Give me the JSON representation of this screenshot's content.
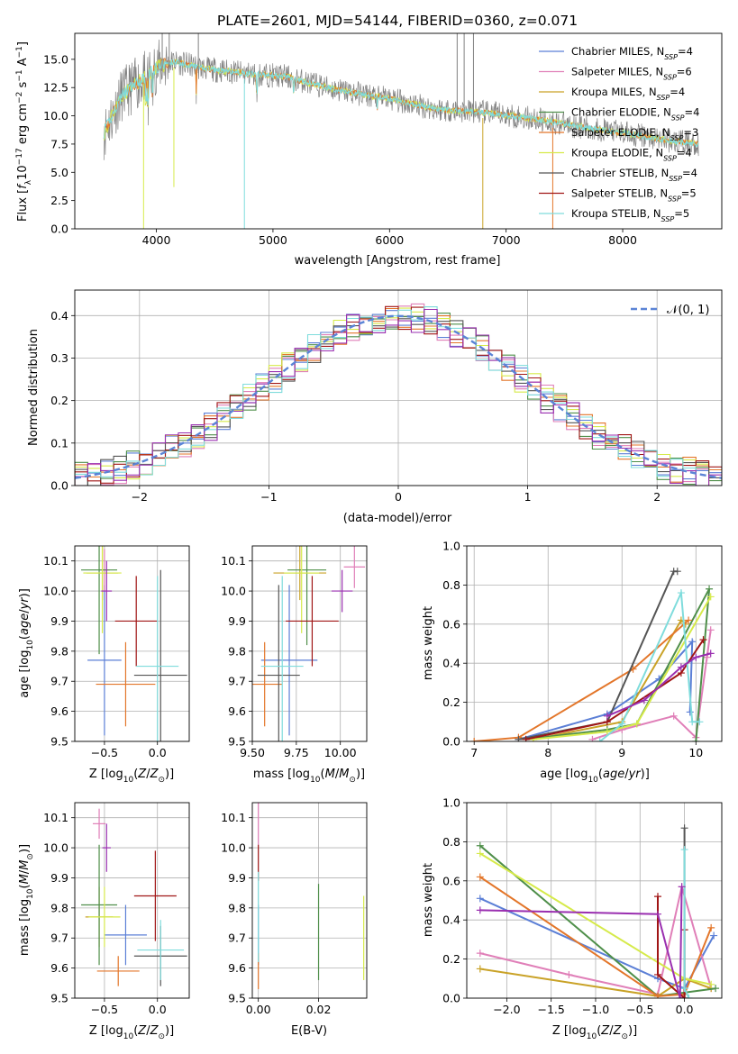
{
  "page_title": "PLATE=2601, MJD=54144, FIBERID=0360, z=0.071",
  "colors": {
    "Chabrier MILES": "#5b7fd6",
    "Salpeter MILES": "#e07fb8",
    "Kroupa MILES": "#c9a227",
    "Chabrier ELODIE": "#4f8f4a",
    "Salpeter ELODIE": "#e3762a",
    "Kroupa ELODIE": "#d6ea4a",
    "Chabrier STELIB": "#555555",
    "Salpeter STELIB": "#a01515",
    "Kroupa STELIB": "#7fdcdc",
    "purple": "#9a2fb0",
    "grey_data": "#808080",
    "gauss": "#5b84d6"
  },
  "chart_data": [
    {
      "id": "spectrum",
      "type": "line",
      "title": "PLATE=2601, MJD=54144, FIBERID=0360, z=0.071",
      "xlabel": "wavelength [Angstrom, rest frame]",
      "ylabel": "Flux [f_λ 10^{-17} erg cm^{-2} s^{-1} A^{-1}]",
      "xlim": [
        3300,
        8850
      ],
      "ylim": [
        0,
        17.3
      ],
      "xticks": [
        "4000",
        "5000",
        "6000",
        "7000",
        "8000"
      ],
      "yticks": [
        "0.0",
        "2.5",
        "5.0",
        "7.5",
        "10.0",
        "12.5",
        "15.0"
      ],
      "legend_position": "top-right",
      "legend": [
        {
          "name": "Chabrier MILES",
          "nssp": "4"
        },
        {
          "name": "Salpeter MILES",
          "nssp": "6"
        },
        {
          "name": "Kroupa MILES",
          "nssp": "4"
        },
        {
          "name": "Chabrier ELODIE",
          "nssp": "4"
        },
        {
          "name": "Salpeter ELODIE",
          "nssp": "3"
        },
        {
          "name": "Kroupa ELODIE",
          "nssp": "4"
        },
        {
          "name": "Chabrier STELIB",
          "nssp": "4"
        },
        {
          "name": "Salpeter STELIB",
          "nssp": "5"
        },
        {
          "name": "Kroupa STELIB",
          "nssp": "5"
        }
      ],
      "continuum": {
        "x": [
          3550,
          3700,
          3850,
          4000,
          4150,
          4400,
          4800,
          5100,
          5500,
          6000,
          6400,
          6800,
          7200,
          7600,
          8000,
          8400,
          8650
        ],
        "y": [
          8.5,
          11.8,
          13.0,
          14.3,
          14.8,
          14.2,
          13.7,
          13.5,
          12.4,
          11.5,
          10.6,
          10.3,
          9.8,
          9.1,
          8.5,
          7.8,
          7.5
        ]
      }
    },
    {
      "id": "residuals",
      "type": "histogram",
      "xlabel": "(data-model)/error",
      "ylabel": "Normed distribution",
      "xlim": [
        -2.5,
        2.5
      ],
      "ylim": [
        0,
        0.46
      ],
      "xticks": [
        "−2",
        "−1",
        "0",
        "1",
        "2"
      ],
      "yticks": [
        "0.0",
        "0.1",
        "0.2",
        "0.3",
        "0.4"
      ],
      "legend": "𝒩(0, 1)",
      "legend_position": "top-right",
      "gaussian": {
        "mu": 0,
        "sigma": 1
      }
    },
    {
      "id": "age-vs-Z",
      "type": "scatter",
      "xlabel": "Z [log10(Z/Z☉)]",
      "ylabel": "age [log10(age/yr)]",
      "xlim": [
        -0.78,
        0.3
      ],
      "ylim": [
        9.5,
        10.15
      ],
      "xticks": [
        "−0.5",
        "0.0"
      ],
      "yticks": [
        "9.5",
        "9.6",
        "9.7",
        "9.8",
        "9.9",
        "10.0",
        "10.1"
      ],
      "points": [
        {
          "series": "Chabrier MILES",
          "x": -0.5,
          "y": 9.77,
          "xerr": 0.16,
          "yerr": 0.25
        },
        {
          "series": "Salpeter MILES",
          "x": -0.5,
          "y": 10.07,
          "xerr": 0.05,
          "yerr": 0.07
        },
        {
          "series": "Kroupa MILES",
          "x": -0.52,
          "y": 10.06,
          "xerr": 0.15,
          "yerr": 0.09
        },
        {
          "series": "Chabrier ELODIE",
          "x": -0.55,
          "y": 10.07,
          "xerr": 0.17,
          "yerr": 0.28
        },
        {
          "series": "Salpeter ELODIE",
          "x": -0.3,
          "y": 9.69,
          "xerr": 0.28,
          "yerr": 0.14
        },
        {
          "series": "Kroupa ELODIE",
          "x": -0.52,
          "y": 10.06,
          "xerr": 0.18,
          "yerr": 0.2
        },
        {
          "series": "Chabrier STELIB",
          "x": 0.03,
          "y": 9.72,
          "xerr": 0.25,
          "yerr": 0.35
        },
        {
          "series": "Salpeter STELIB",
          "x": -0.2,
          "y": 9.9,
          "xerr": 0.2,
          "yerr": 0.15
        },
        {
          "series": "Kroupa STELIB",
          "x": 0.0,
          "y": 9.75,
          "xerr": 0.2,
          "yerr": 0.3
        },
        {
          "series": "purple",
          "x": -0.48,
          "y": 10.0,
          "xerr": 0.05,
          "yerr": 0.1
        }
      ]
    },
    {
      "id": "age-vs-mass",
      "type": "scatter",
      "xlabel": "mass [log10(M/M☉)]",
      "ylabel": "",
      "xlim": [
        9.5,
        10.15
      ],
      "ylim": [
        9.5,
        10.15
      ],
      "xticks": [
        "9.50",
        "9.75",
        "10.00"
      ],
      "yticks": [
        "9.5",
        "9.6",
        "9.7",
        "9.8",
        "9.9",
        "10.0",
        "10.1"
      ],
      "points": [
        {
          "series": "Chabrier MILES",
          "x": 9.71,
          "y": 9.77,
          "xerr": 0.16,
          "yerr": 0.25
        },
        {
          "series": "Salpeter MILES",
          "x": 10.08,
          "y": 10.08,
          "xerr": 0.06,
          "yerr": 0.07
        },
        {
          "series": "Kroupa MILES",
          "x": 9.77,
          "y": 10.06,
          "xerr": 0.15,
          "yerr": 0.09
        },
        {
          "series": "Chabrier ELODIE",
          "x": 9.81,
          "y": 10.07,
          "xerr": 0.11,
          "yerr": 0.25
        },
        {
          "series": "Salpeter ELODIE",
          "x": 9.57,
          "y": 9.69,
          "xerr": 0.1,
          "yerr": 0.14
        },
        {
          "series": "Kroupa ELODIE",
          "x": 9.78,
          "y": 10.06,
          "xerr": 0.1,
          "yerr": 0.2
        },
        {
          "series": "Chabrier STELIB",
          "x": 9.65,
          "y": 9.72,
          "xerr": 0.12,
          "yerr": 0.3
        },
        {
          "series": "Salpeter STELIB",
          "x": 9.84,
          "y": 9.9,
          "xerr": 0.15,
          "yerr": 0.15
        },
        {
          "series": "Kroupa STELIB",
          "x": 9.67,
          "y": 9.75,
          "xerr": 0.12,
          "yerr": 0.3
        },
        {
          "series": "purple",
          "x": 10.01,
          "y": 10.0,
          "xerr": 0.06,
          "yerr": 0.07
        }
      ]
    },
    {
      "id": "massweight-vs-age",
      "type": "line",
      "xlabel": "age [log10(age/yr)]",
      "ylabel": "mass weight",
      "xlim": [
        6.9,
        10.35
      ],
      "ylim": [
        0,
        1
      ],
      "xticks": [
        "7",
        "8",
        "9",
        "10"
      ],
      "yticks": [
        "0.0",
        "0.2",
        "0.4",
        "0.6",
        "0.8",
        "1.0"
      ],
      "series": [
        {
          "name": "Chabrier MILES",
          "x": [
            7.6,
            8.8,
            9.5,
            9.95,
            9.92
          ],
          "y": [
            0.01,
            0.14,
            0.32,
            0.51,
            0.15
          ]
        },
        {
          "name": "Salpeter MILES",
          "x": [
            8.6,
            9.0,
            9.7,
            10.0,
            10.2,
            10.15
          ],
          "y": [
            0.01,
            0.06,
            0.13,
            0.02,
            0.57,
            0.43
          ]
        },
        {
          "name": "Kroupa MILES",
          "x": [
            7.8,
            9.0,
            9.8,
            9.86
          ],
          "y": [
            0.01,
            0.1,
            0.62,
            0.6
          ]
        },
        {
          "name": "Chabrier ELODIE",
          "x": [
            7.7,
            8.8,
            9.2,
            10.18,
            10.0
          ],
          "y": [
            0.01,
            0.06,
            0.09,
            0.78,
            0.0
          ]
        },
        {
          "name": "Salpeter ELODIE",
          "x": [
            7.0,
            7.6,
            9.15,
            9.9
          ],
          "y": [
            0.0,
            0.02,
            0.37,
            0.62
          ]
        },
        {
          "name": "Kroupa ELODIE",
          "x": [
            7.8,
            8.8,
            9.2,
            10.2
          ],
          "y": [
            0.01,
            0.05,
            0.09,
            0.74
          ]
        },
        {
          "name": "Chabrier STELIB",
          "x": [
            7.6,
            8.8,
            9.7,
            9.75
          ],
          "y": [
            0.01,
            0.1,
            0.87,
            0.87
          ]
        },
        {
          "name": "Salpeter STELIB",
          "x": [
            7.7,
            8.8,
            9.8,
            10.1
          ],
          "y": [
            0.01,
            0.1,
            0.35,
            0.52
          ]
        },
        {
          "name": "Kroupa STELIB",
          "x": [
            8.7,
            9.0,
            9.8,
            9.95,
            10.05
          ],
          "y": [
            0.0,
            0.09,
            0.76,
            0.1,
            0.1
          ]
        },
        {
          "name": "purple",
          "x": [
            8.8,
            9.3,
            9.8,
            10.0,
            10.2
          ],
          "y": [
            0.13,
            0.21,
            0.38,
            0.43,
            0.45
          ]
        }
      ]
    },
    {
      "id": "mass-vs-Z",
      "type": "scatter",
      "xlabel": "Z [log10(Z/Z☉)]",
      "ylabel": "mass [log10(M/M☉)]",
      "xlim": [
        -0.78,
        0.3
      ],
      "ylim": [
        9.5,
        10.15
      ],
      "xticks": [
        "−0.5",
        "0.0"
      ],
      "yticks": [
        "9.5",
        "9.6",
        "9.7",
        "9.8",
        "9.9",
        "10.0",
        "10.1"
      ],
      "points": [
        {
          "series": "Chabrier MILES",
          "x": -0.3,
          "y": 9.71,
          "xerr": 0.2,
          "yerr": 0.1
        },
        {
          "series": "Salpeter MILES",
          "x": -0.55,
          "y": 10.08,
          "xerr": 0.06,
          "yerr": 0.05
        },
        {
          "series": "Kroupa MILES",
          "x": -0.55,
          "y": 9.77,
          "xerr": 0.13,
          "yerr": 0.1
        },
        {
          "series": "Chabrier ELODIE",
          "x": -0.55,
          "y": 9.81,
          "xerr": 0.17,
          "yerr": 0.2
        },
        {
          "series": "Salpeter ELODIE",
          "x": -0.37,
          "y": 9.59,
          "xerr": 0.2,
          "yerr": 0.05
        },
        {
          "series": "Kroupa ELODIE",
          "x": -0.5,
          "y": 9.77,
          "xerr": 0.15,
          "yerr": 0.1
        },
        {
          "series": "Chabrier STELIB",
          "x": 0.03,
          "y": 9.64,
          "xerr": 0.25,
          "yerr": 0.1
        },
        {
          "series": "Salpeter STELIB",
          "x": -0.02,
          "y": 9.84,
          "xerr": 0.2,
          "yerr": 0.15
        },
        {
          "series": "Kroupa STELIB",
          "x": 0.03,
          "y": 9.66,
          "xerr": 0.22,
          "yerr": 0.1
        },
        {
          "series": "purple",
          "x": -0.48,
          "y": 10.0,
          "xerr": 0.04,
          "yerr": 0.08
        }
      ]
    },
    {
      "id": "mass-vs-ebv",
      "type": "scatter",
      "xlabel": "E(B-V)",
      "ylabel": "",
      "xlim": [
        -0.002,
        0.036
      ],
      "ylim": [
        9.5,
        10.15
      ],
      "xticks": [
        "0.00",
        "0.02"
      ],
      "yticks": [
        "9.5",
        "9.6",
        "9.7",
        "9.8",
        "9.9",
        "10.0",
        "10.1"
      ],
      "points": [
        {
          "series": "Chabrier MILES",
          "x": 0.0,
          "y": 9.71,
          "yerr": 0.1
        },
        {
          "series": "Salpeter MILES",
          "x": 0.0,
          "y": 10.08,
          "yerr": 0.07
        },
        {
          "series": "Chabrier ELODIE",
          "x": 0.02,
          "y": 9.72,
          "yerr": 0.16
        },
        {
          "series": "Salpeter ELODIE",
          "x": 0.0,
          "y": 9.59,
          "yerr": 0.06
        },
        {
          "series": "Kroupa ELODIE",
          "x": 0.035,
          "y": 9.7,
          "yerr": 0.14
        },
        {
          "series": "Salpeter STELIB",
          "x": 0.0,
          "y": 9.95,
          "yerr": 0.06
        },
        {
          "series": "Kroupa STELIB",
          "x": 0.0,
          "y": 9.77,
          "yerr": 0.15
        }
      ]
    },
    {
      "id": "massweight-vs-Z",
      "type": "line",
      "xlabel": "Z [log10(Z/Z☉)]",
      "ylabel": "mass weight",
      "xlim": [
        -2.45,
        0.42
      ],
      "ylim": [
        0,
        1
      ],
      "xticks": [
        "−2.0",
        "−1.5",
        "−1.0",
        "−0.5",
        "0.0"
      ],
      "yticks": [
        "0.0",
        "0.2",
        "0.4",
        "0.6",
        "0.8",
        "1.0"
      ],
      "series": [
        {
          "name": "Chabrier MILES",
          "x": [
            -2.3,
            -0.3,
            0.0,
            0.33
          ],
          "y": [
            0.51,
            0.1,
            0.05,
            0.32
          ]
        },
        {
          "name": "Salpeter MILES",
          "x": [
            -2.3,
            -1.3,
            -0.3,
            -0.03,
            0.3
          ],
          "y": [
            0.23,
            0.12,
            0.02,
            0.57,
            0.05
          ]
        },
        {
          "name": "Kroupa MILES",
          "x": [
            -2.3,
            -0.3,
            0.0,
            0.3
          ],
          "y": [
            0.15,
            0.01,
            0.1,
            0.05
          ]
        },
        {
          "name": "Chabrier ELODIE",
          "x": [
            -2.3,
            -0.3,
            0.35
          ],
          "y": [
            0.78,
            0.01,
            0.05
          ]
        },
        {
          "name": "Salpeter ELODIE",
          "x": [
            -2.3,
            -0.3,
            0.0,
            0.3
          ],
          "y": [
            0.62,
            0.01,
            0.02,
            0.36
          ]
        },
        {
          "name": "Kroupa ELODIE",
          "x": [
            -2.3,
            0.0,
            0.3
          ],
          "y": [
            0.74,
            0.1,
            0.07
          ]
        },
        {
          "name": "Chabrier STELIB",
          "x": [
            0.0,
            0.0,
            0.0
          ],
          "y": [
            0.87,
            0.35,
            0.0
          ]
        },
        {
          "name": "Salpeter STELIB",
          "x": [
            -0.3,
            -0.3,
            0.0,
            0.0
          ],
          "y": [
            0.52,
            0.12,
            0.0,
            0.35
          ]
        },
        {
          "name": "Kroupa STELIB",
          "x": [
            0.0,
            0.0,
            0.05
          ],
          "y": [
            0.76,
            0.05,
            0.0
          ]
        },
        {
          "name": "purple",
          "x": [
            -2.3,
            -0.3,
            -0.05,
            -0.03
          ],
          "y": [
            0.45,
            0.43,
            0.0,
            0.57
          ]
        }
      ]
    }
  ]
}
